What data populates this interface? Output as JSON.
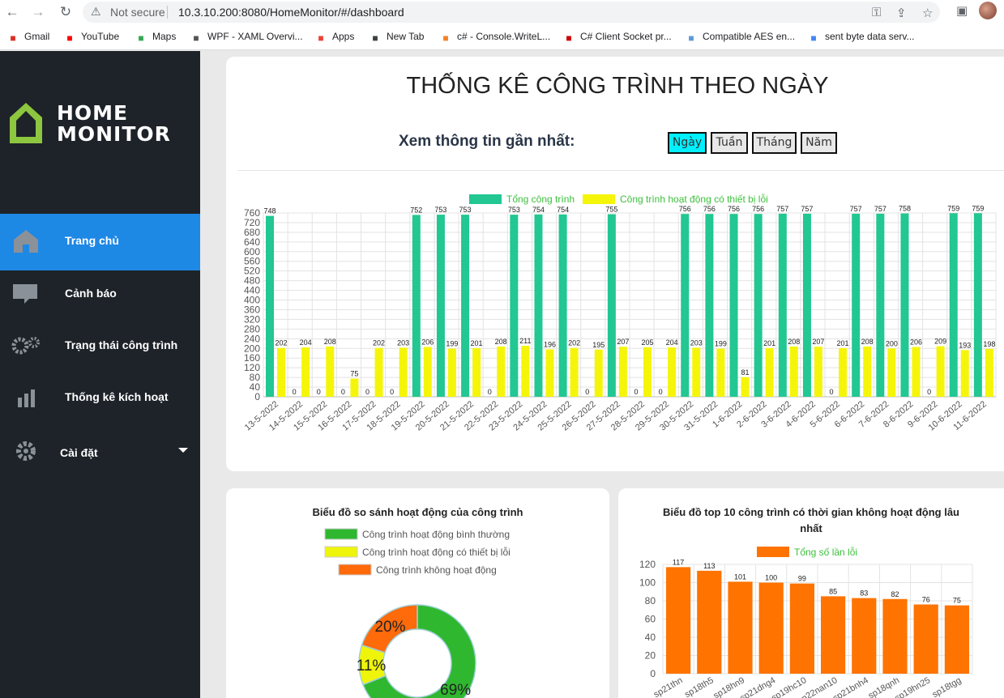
{
  "browser": {
    "back_icon": "back-arrow-icon",
    "not_secure": "Not secure",
    "url": "10.3.10.200:8080/HomeMonitor/#/dashboard",
    "bookmarks": [
      {
        "label": "Gmail",
        "icon": "gmail-icon",
        "color": "#d93025"
      },
      {
        "label": "YouTube",
        "icon": "youtube-icon",
        "color": "#ff0000"
      },
      {
        "label": "Maps",
        "icon": "maps-icon",
        "color": "#34a853"
      },
      {
        "label": "WPF - XAML Overvi...",
        "icon": "wpf-icon",
        "color": "#555555"
      },
      {
        "label": "Apps",
        "icon": "apps-grid-icon",
        "color": "#ea4335"
      },
      {
        "label": "New Tab",
        "icon": "globe-icon",
        "color": "#3c4043"
      },
      {
        "label": "c# - Console.WriteL...",
        "icon": "stackoverflow-icon",
        "color": "#f48024"
      },
      {
        "label": "C# Client Socket pr...",
        "icon": "n-icon",
        "color": "#cc0000"
      },
      {
        "label": "Compatible AES en...",
        "icon": "page-icon",
        "color": "#5b9bd5"
      },
      {
        "label": "sent byte data serv...",
        "icon": "google-icon",
        "color": "#4285f4"
      }
    ]
  },
  "sidebar": {
    "logo_line1": "HOME",
    "logo_line2": "MONITOR",
    "items": [
      {
        "label": "Trang chủ",
        "icon": "home-icon"
      },
      {
        "label": "Cảnh báo",
        "icon": "chat-alert-icon"
      },
      {
        "label": "Trạng thái công trình",
        "icon": "gears-icon"
      },
      {
        "label": "Thống kê kích hoạt",
        "icon": "bar-stats-icon"
      },
      {
        "label": "Cài đặt",
        "icon": "settings-gear-icon",
        "caret": "caret-down-icon"
      }
    ]
  },
  "dashboard": {
    "title": "THỐNG KÊ CÔNG TRÌNH THEO NGÀY",
    "recent_label": "Xem thông tin gần nhất:",
    "periods": [
      "Ngày",
      "Tuần",
      "Tháng",
      "Năm"
    ],
    "active_period": "Ngày",
    "left_title": "Biểu đồ so sánh hoạt động của công trình",
    "right_title_1": "Biểu đồ top 10 công trình có thời gian không hoạt động lâu",
    "right_title_2": "nhất"
  },
  "chart_data": [
    {
      "type": "bar",
      "categories": [
        "13-5-2022",
        "14-5-2022",
        "15-5-2022",
        "16-5-2022",
        "17-5-2022",
        "18-5-2022",
        "19-5-2022",
        "20-5-2022",
        "21-5-2022",
        "22-5-2022",
        "23-5-2022",
        "24-5-2022",
        "25-5-2022",
        "26-5-2022",
        "27-5-2022",
        "28-5-2022",
        "29-5-2022",
        "30-5-2022",
        "31-5-2022",
        "1-6-2022",
        "2-6-2022",
        "3-6-2022",
        "4-6-2022",
        "5-6-2022",
        "6-6-2022",
        "7-6-2022",
        "8-6-2022",
        "9-6-2022",
        "10-6-2022",
        "11-6-2022"
      ],
      "series": [
        {
          "name": "Tổng công trình",
          "color": "#22c792",
          "values": [
            748,
            0,
            0,
            0,
            0,
            0,
            752,
            753,
            753,
            0,
            753,
            754,
            754,
            0,
            755,
            0,
            0,
            756,
            756,
            756,
            756,
            757,
            757,
            0,
            757,
            757,
            758,
            0,
            759,
            759
          ]
        },
        {
          "name": "Công trình hoạt động có thiết bị lỗi",
          "color": "#f5f50a",
          "values": [
            202,
            204,
            208,
            75,
            202,
            203,
            206,
            199,
            201,
            208,
            211,
            196,
            202,
            195,
            207,
            205,
            204,
            203,
            199,
            81,
            201,
            208,
            207,
            201,
            208,
            200,
            206,
            209,
            193,
            198
          ]
        }
      ],
      "ylim": [
        0,
        760
      ],
      "yticks": [
        0,
        40,
        80,
        120,
        160,
        200,
        240,
        280,
        320,
        360,
        400,
        440,
        480,
        520,
        560,
        600,
        640,
        680,
        720,
        760
      ],
      "legend": "top",
      "grid": true
    },
    {
      "type": "pie",
      "title": "Biểu đồ so sánh hoạt động của công trình",
      "categories": [
        "Công trình hoạt động bình thường",
        "Công trình hoạt động có thiết bị lỗi",
        "Công trình không hoạt động"
      ],
      "values": [
        69,
        11,
        20
      ],
      "labels": [
        "69%",
        "11%",
        "20%"
      ],
      "colors": [
        "#2fb82f",
        "#eef50a",
        "#ff6a0a"
      ],
      "legend": "top"
    },
    {
      "type": "bar",
      "title": "Biểu đồ top 10 công trình có thời gian không hoạt động lâu nhất",
      "categories": [
        "sp21thn",
        "sp18th5",
        "sp18hn9",
        "sp21dng4",
        "sp19hc10",
        "sp22nan10",
        "sp21bnh4",
        "sp18qnh",
        "sp19hn25",
        "sp18tgg"
      ],
      "series": [
        {
          "name": "Tổng số lần lỗi",
          "color": "#ff7300",
          "values": [
            117,
            113,
            101,
            100,
            99,
            85,
            83,
            82,
            76,
            75
          ]
        }
      ],
      "ylim": [
        0,
        120
      ],
      "yticks": [
        0,
        20,
        40,
        60,
        80,
        100,
        120
      ],
      "legend": "top",
      "grid": true
    }
  ]
}
